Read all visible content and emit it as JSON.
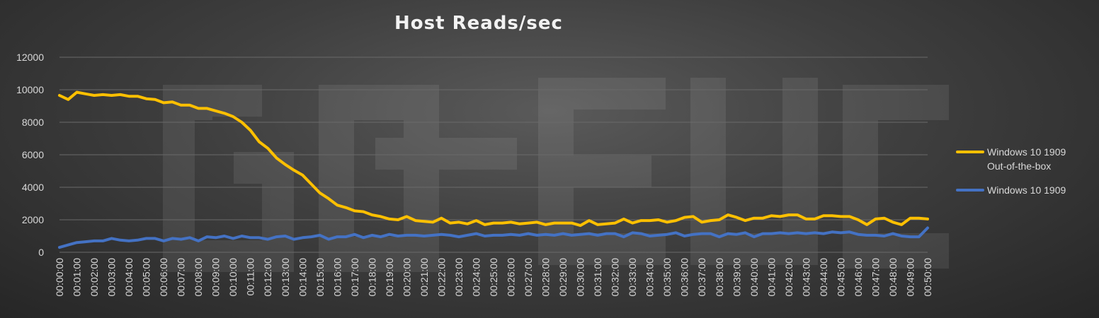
{
  "chart_data": {
    "type": "line",
    "title": "Host Reads/sec",
    "xlabel": "",
    "ylabel": "",
    "ylim": [
      0,
      12000
    ],
    "yticks": [
      0,
      2000,
      4000,
      6000,
      8000,
      10000,
      12000
    ],
    "grid": true,
    "legend_position": "right",
    "watermark": "GO-EUC",
    "x_tick_labels": [
      "00:00:00",
      "00:01:00",
      "00:02:00",
      "00:03:00",
      "00:04:00",
      "00:05:00",
      "00:06:00",
      "00:07:00",
      "00:08:00",
      "00:09:00",
      "00:10:00",
      "00:11:00",
      "00:12:00",
      "00:13:00",
      "00:14:00",
      "00:15:00",
      "00:16:00",
      "00:17:00",
      "00:18:00",
      "00:19:00",
      "00:20:00",
      "00:21:00",
      "00:22:00",
      "00:23:00",
      "00:24:00",
      "00:25:00",
      "00:26:00",
      "00:27:00",
      "00:28:00",
      "00:29:00",
      "00:30:00",
      "00:31:00",
      "00:32:00",
      "00:33:00",
      "00:34:00",
      "00:35:00",
      "00:36:00",
      "00:37:00",
      "00:38:00",
      "00:39:00",
      "00:40:00",
      "00:41:00",
      "00:42:00",
      "00:43:00",
      "00:44:00",
      "00:45:00",
      "00:46:00",
      "00:47:00",
      "00:48:00",
      "00:49:00",
      "00:50:00"
    ],
    "series": [
      {
        "name": "Windows 10 1909 Out-of-the-box",
        "name_lines": [
          "Windows 10 1909",
          "Out-of-the-box"
        ],
        "color": "#FFC000",
        "values": [
          9650,
          9400,
          9850,
          9750,
          9650,
          9700,
          9650,
          9700,
          9600,
          9600,
          9450,
          9400,
          9200,
          9250,
          9050,
          9050,
          8850,
          8850,
          8700,
          8550,
          8350,
          8000,
          7500,
          6800,
          6400,
          5800,
          5400,
          5050,
          4750,
          4200,
          3650,
          3300,
          2900,
          2750,
          2550,
          2500,
          2300,
          2200,
          2050,
          2000,
          2200,
          1950,
          1900,
          1850,
          2100,
          1800,
          1850,
          1750,
          1950,
          1700,
          1800,
          1800,
          1850,
          1750,
          1800,
          1850,
          1700,
          1800,
          1800,
          1800,
          1650,
          1950,
          1700,
          1750,
          1800,
          2050,
          1800,
          1950,
          1950,
          2000,
          1850,
          1950,
          2150,
          2200,
          1850,
          1950,
          2000,
          2300,
          2150,
          1950,
          2100,
          2100,
          2250,
          2200,
          2300,
          2300,
          2050,
          2050,
          2250,
          2250,
          2200,
          2200,
          2000,
          1700,
          2050,
          2100,
          1850,
          1700,
          2100,
          2100,
          2050
        ]
      },
      {
        "name": "Windows 10 1909",
        "color": "#4472C4",
        "values": [
          300,
          450,
          600,
          650,
          700,
          700,
          850,
          750,
          700,
          750,
          850,
          850,
          700,
          850,
          800,
          900,
          700,
          950,
          900,
          1000,
          850,
          1000,
          900,
          900,
          800,
          950,
          1000,
          800,
          900,
          950,
          1050,
          800,
          950,
          950,
          1100,
          900,
          1050,
          950,
          1100,
          1000,
          1050,
          1050,
          1000,
          1050,
          1100,
          1050,
          950,
          1050,
          1150,
          1000,
          1050,
          1050,
          1100,
          1050,
          1150,
          1050,
          1100,
          1050,
          1150,
          1050,
          1100,
          1150,
          1050,
          1150,
          1150,
          950,
          1200,
          1150,
          1000,
          1050,
          1100,
          1200,
          1000,
          1100,
          1150,
          1150,
          950,
          1150,
          1100,
          1200,
          950,
          1150,
          1150,
          1200,
          1150,
          1200,
          1150,
          1200,
          1150,
          1250,
          1200,
          1250,
          1100,
          1050,
          1050,
          1000,
          1150,
          1000,
          950,
          950,
          1500
        ]
      }
    ]
  }
}
